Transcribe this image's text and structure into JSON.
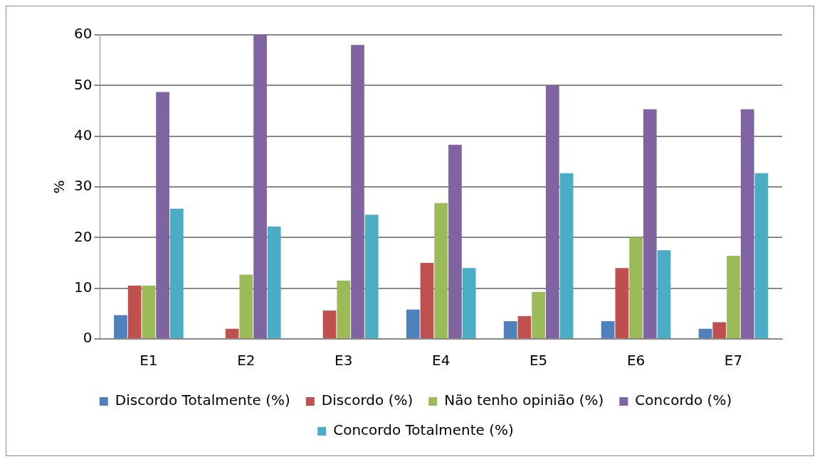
{
  "chart_data": {
    "type": "bar",
    "ylabel": "%",
    "categories": [
      "E1",
      "E2",
      "E3",
      "E4",
      "E5",
      "E6",
      "E7"
    ],
    "series": [
      {
        "name": "Discordo Totalmente (%)",
        "color": "#4f81bd",
        "values": [
          4.7,
          0,
          0,
          5.8,
          3.5,
          3.5,
          2
        ]
      },
      {
        "name": "Discordo (%)",
        "color": "#c0504d",
        "values": [
          10.5,
          2,
          5.6,
          15,
          4.5,
          14,
          3.3
        ]
      },
      {
        "name": "Não tenho opinião (%)",
        "color": "#9bbb59",
        "values": [
          10.5,
          12.7,
          11.5,
          26.8,
          9.3,
          20,
          16.4
        ]
      },
      {
        "name": "Concordo (%)",
        "color": "#8064a2",
        "values": [
          48.7,
          60,
          58,
          38.3,
          50,
          45.3,
          45.3
        ]
      },
      {
        "name": "Concordo Totalmente (%)",
        "color": "#4bacc6",
        "values": [
          25.7,
          22.2,
          24.5,
          14,
          32.7,
          17.5,
          32.7
        ]
      }
    ],
    "ylim": [
      0,
      60
    ],
    "yticks": [
      0,
      10,
      20,
      30,
      40,
      50,
      60
    ],
    "grid": "y",
    "legend": "bottom"
  }
}
